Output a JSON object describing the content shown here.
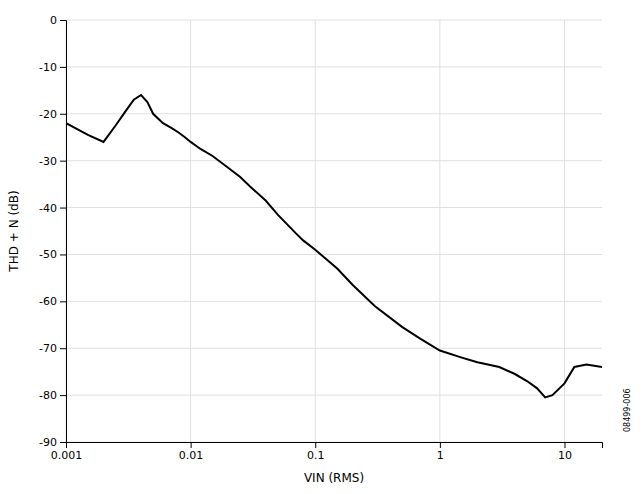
{
  "chart_data": {
    "type": "line",
    "x": [
      0.001,
      0.0015,
      0.002,
      0.0025,
      0.003,
      0.0035,
      0.004,
      0.0045,
      0.005,
      0.006,
      0.007,
      0.008,
      0.009,
      0.01,
      0.012,
      0.015,
      0.02,
      0.025,
      0.03,
      0.04,
      0.05,
      0.07,
      0.08,
      0.1,
      0.15,
      0.2,
      0.3,
      0.5,
      0.7,
      1.0,
      1.5,
      2.0,
      3.0,
      4.0,
      5.0,
      6.0,
      7.0,
      8.0,
      10.0,
      12.0,
      15.0,
      20.0
    ],
    "values": [
      -22.0,
      -24.5,
      -26.0,
      -22.5,
      -19.5,
      -17.0,
      -16.0,
      -17.5,
      -20.0,
      -22.0,
      -23.0,
      -24.0,
      -25.0,
      -26.0,
      -27.5,
      -29.0,
      -31.5,
      -33.5,
      -35.5,
      -38.5,
      -41.5,
      -45.5,
      -47.0,
      -49.0,
      -53.0,
      -56.5,
      -61.0,
      -65.5,
      -68.0,
      -70.5,
      -72.0,
      -73.0,
      -74.0,
      -75.5,
      -77.0,
      -78.5,
      -80.5,
      -80.0,
      -77.5,
      -74.0,
      -73.5,
      -74.0
    ],
    "color": "#000000",
    "xlabel": "VIN (RMS)",
    "ylabel": "THD + N (dB)",
    "annotations": [
      "08499-006"
    ],
    "xlim": [
      0.001,
      20
    ],
    "ylim": [
      -90,
      0
    ],
    "xticks": [
      0.001,
      0.01,
      0.1,
      1,
      10
    ],
    "yticks": [
      0,
      -10,
      -20,
      -30,
      -40,
      -50,
      -60,
      -70,
      -80,
      -90
    ],
    "log": "x",
    "grid": true
  }
}
